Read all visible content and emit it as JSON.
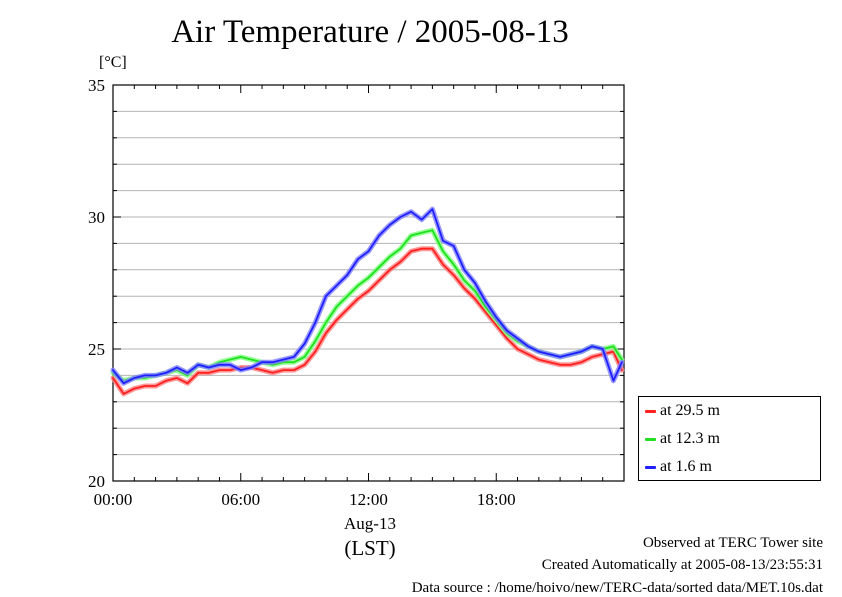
{
  "title": "Air Temperature / 2005-08-13",
  "unit_label": "[°C]",
  "chart_data": {
    "type": "line",
    "title": "Air Temperature / 2005-08-13",
    "ylabel": "[°C]",
    "xlabel": "Aug-13",
    "xlabel_sub": "(LST)",
    "xlim": [
      0,
      24
    ],
    "ylim": [
      20,
      35
    ],
    "x_ticks": [
      0,
      6,
      12,
      18
    ],
    "x_tick_labels": [
      "00:00",
      "06:00",
      "12:00",
      "18:00"
    ],
    "y_ticks": [
      20,
      25,
      30,
      35
    ],
    "y_tick_labels": [
      "20",
      "25",
      "30",
      "35"
    ],
    "grid": true,
    "legend_position": "bottom-right outside",
    "x": [
      0,
      0.5,
      1,
      1.5,
      2,
      2.5,
      3,
      3.5,
      4,
      4.5,
      5,
      5.5,
      6,
      6.5,
      7,
      7.5,
      8,
      8.5,
      9,
      9.5,
      10,
      10.5,
      11,
      11.5,
      12,
      12.5,
      13,
      13.5,
      14,
      14.5,
      15,
      15.5,
      16,
      16.5,
      17,
      17.5,
      18,
      18.5,
      19,
      19.5,
      20,
      20.5,
      21,
      21.5,
      22,
      22.5,
      23,
      23.5,
      23.9
    ],
    "series": [
      {
        "name": "at 29.5 m",
        "color": "#ff2020",
        "values": [
          23.9,
          23.3,
          23.5,
          23.6,
          23.6,
          23.8,
          23.9,
          23.7,
          24.1,
          24.1,
          24.2,
          24.2,
          24.3,
          24.3,
          24.2,
          24.1,
          24.2,
          24.2,
          24.4,
          24.9,
          25.6,
          26.1,
          26.5,
          26.9,
          27.2,
          27.6,
          28.0,
          28.3,
          28.7,
          28.8,
          28.8,
          28.2,
          27.8,
          27.3,
          26.9,
          26.4,
          25.9,
          25.4,
          25.0,
          24.8,
          24.6,
          24.5,
          24.4,
          24.4,
          24.5,
          24.7,
          24.8,
          24.9,
          24.2
        ]
      },
      {
        "name": "at 12.3 m",
        "color": "#20e020",
        "values": [
          24.1,
          23.8,
          23.9,
          23.9,
          24.0,
          24.1,
          24.2,
          24.0,
          24.4,
          24.3,
          24.5,
          24.6,
          24.7,
          24.6,
          24.5,
          24.4,
          24.5,
          24.5,
          24.7,
          25.3,
          26.0,
          26.6,
          27.0,
          27.4,
          27.7,
          28.1,
          28.5,
          28.8,
          29.3,
          29.4,
          29.5,
          28.7,
          28.2,
          27.6,
          27.2,
          26.6,
          26.1,
          25.6,
          25.3,
          25.1,
          24.9,
          24.8,
          24.7,
          24.8,
          24.9,
          25.1,
          25.0,
          25.1,
          24.6
        ]
      },
      {
        "name": "at 1.6 m",
        "color": "#2020ff",
        "values": [
          24.2,
          23.7,
          23.9,
          24.0,
          24.0,
          24.1,
          24.3,
          24.1,
          24.4,
          24.3,
          24.4,
          24.4,
          24.2,
          24.3,
          24.5,
          24.5,
          24.6,
          24.7,
          25.2,
          26.0,
          27.0,
          27.4,
          27.8,
          28.4,
          28.7,
          29.3,
          29.7,
          30.0,
          30.2,
          29.9,
          30.3,
          29.1,
          28.9,
          28.0,
          27.5,
          26.8,
          26.2,
          25.7,
          25.4,
          25.1,
          24.9,
          24.8,
          24.7,
          24.8,
          24.9,
          25.1,
          25.0,
          23.8,
          24.5
        ]
      }
    ]
  },
  "footer": {
    "line1": "Observed at TERC Tower site",
    "line2": "Created Automatically at 2005-08-13/23:55:31",
    "line3": "Data source : /home/hoivo/new/TERC-data/sorted  data/MET.10s.dat"
  }
}
